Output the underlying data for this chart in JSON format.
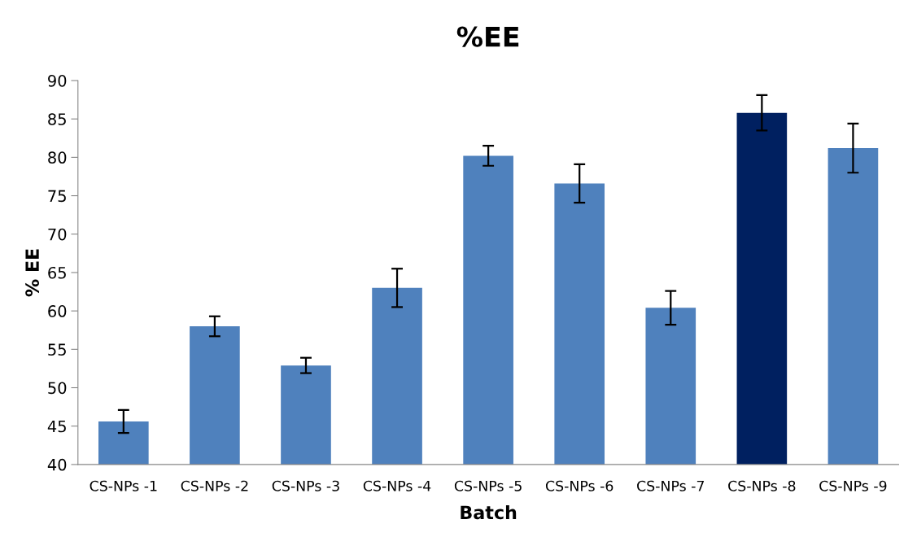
{
  "chart_data": {
    "type": "bar",
    "title": "%EE",
    "xlabel": "Batch",
    "ylabel": "% EE",
    "categories": [
      "CS-NPs -1",
      "CS-NPs -2",
      "CS-NPs -3",
      "CS-NPs -4",
      "CS-NPs -5",
      "CS-NPs -6",
      "CS-NPs -7",
      "CS-NPs -8",
      "CS-NPs -9"
    ],
    "values": [
      45.6,
      58.0,
      52.9,
      63.0,
      80.2,
      76.6,
      60.4,
      85.8,
      81.2
    ],
    "errors": [
      1.5,
      1.3,
      1.0,
      2.5,
      1.3,
      2.5,
      2.2,
      2.3,
      3.2
    ],
    "colors": [
      "#4f81bd",
      "#4f81bd",
      "#4f81bd",
      "#4f81bd",
      "#4f81bd",
      "#4f81bd",
      "#4f81bd",
      "#002060",
      "#4f81bd"
    ],
    "ylim": [
      40,
      90
    ],
    "yticks": [
      40,
      45,
      50,
      55,
      60,
      65,
      70,
      75,
      80,
      85,
      90
    ],
    "grid": false,
    "legend": false
  }
}
